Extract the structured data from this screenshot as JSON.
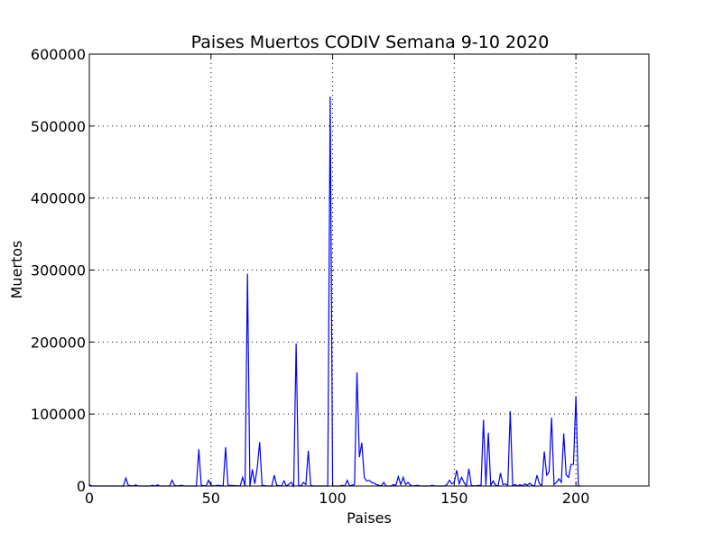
{
  "chart_data": {
    "type": "line",
    "title": "Paises Muertos CODIV Semana 9-10 2020",
    "xlabel": "Paises",
    "ylabel": "Muertos",
    "xlim": [
      0,
      230
    ],
    "ylim": [
      0,
      600000
    ],
    "xticks": [
      0,
      50,
      100,
      150,
      200
    ],
    "yticks": [
      0,
      100000,
      200000,
      300000,
      400000,
      500000,
      600000
    ],
    "grid": true,
    "series_color": "#0000ff",
    "series": [
      {
        "points": [
          [
            0,
            2000
          ],
          [
            1,
            0
          ],
          [
            14,
            0
          ],
          [
            15,
            11000
          ],
          [
            16,
            1000
          ],
          [
            18,
            0
          ],
          [
            19,
            1500
          ],
          [
            20,
            0
          ],
          [
            25,
            0
          ],
          [
            26,
            1000
          ],
          [
            27,
            0
          ],
          [
            28,
            1500
          ],
          [
            29,
            0
          ],
          [
            33,
            0
          ],
          [
            34,
            8000
          ],
          [
            35,
            1000
          ],
          [
            36,
            0
          ],
          [
            38,
            1000
          ],
          [
            39,
            0
          ],
          [
            44,
            0
          ],
          [
            45,
            51000
          ],
          [
            46,
            1000
          ],
          [
            48,
            0
          ],
          [
            49,
            8000
          ],
          [
            50,
            1000
          ],
          [
            51,
            0
          ],
          [
            53,
            1000
          ],
          [
            55,
            0
          ],
          [
            56,
            54000
          ],
          [
            57,
            1000
          ],
          [
            62,
            0
          ],
          [
            63,
            12000
          ],
          [
            64,
            0
          ],
          [
            65,
            295000
          ],
          [
            66,
            0
          ],
          [
            67,
            23000
          ],
          [
            68,
            3000
          ],
          [
            69,
            25000
          ],
          [
            70,
            61000
          ],
          [
            71,
            1000
          ],
          [
            73,
            0
          ],
          [
            75,
            0
          ],
          [
            76,
            15000
          ],
          [
            77,
            1000
          ],
          [
            79,
            0
          ],
          [
            80,
            7000
          ],
          [
            81,
            0
          ],
          [
            83,
            5000
          ],
          [
            84,
            0
          ],
          [
            85,
            198000
          ],
          [
            86,
            1000
          ],
          [
            87,
            0
          ],
          [
            88,
            5000
          ],
          [
            89,
            2000
          ],
          [
            90,
            49000
          ],
          [
            91,
            1000
          ],
          [
            92,
            0
          ],
          [
            97,
            0
          ],
          [
            98,
            0
          ],
          [
            99,
            541000
          ],
          [
            100,
            0
          ],
          [
            103,
            0
          ],
          [
            104,
            1000
          ],
          [
            105,
            0
          ],
          [
            106,
            8000
          ],
          [
            107,
            0
          ],
          [
            109,
            2000
          ],
          [
            110,
            158000
          ],
          [
            111,
            40000
          ],
          [
            112,
            60000
          ],
          [
            113,
            12000
          ],
          [
            114,
            7000
          ],
          [
            115,
            8000
          ],
          [
            116,
            5000
          ],
          [
            117,
            4000
          ],
          [
            118,
            2000
          ],
          [
            119,
            1000
          ],
          [
            120,
            0
          ],
          [
            121,
            5000
          ],
          [
            122,
            0
          ],
          [
            124,
            0
          ],
          [
            125,
            2000
          ],
          [
            126,
            1000
          ],
          [
            127,
            13000
          ],
          [
            128,
            2000
          ],
          [
            129,
            12000
          ],
          [
            130,
            2000
          ],
          [
            131,
            5000
          ],
          [
            132,
            1000
          ],
          [
            133,
            0
          ],
          [
            135,
            1000
          ],
          [
            136,
            0
          ],
          [
            140,
            0
          ],
          [
            141,
            1000
          ],
          [
            142,
            0
          ],
          [
            146,
            0
          ],
          [
            147,
            2000
          ],
          [
            148,
            8000
          ],
          [
            149,
            3000
          ],
          [
            150,
            5000
          ],
          [
            151,
            22000
          ],
          [
            152,
            3000
          ],
          [
            153,
            12000
          ],
          [
            154,
            5000
          ],
          [
            155,
            0
          ],
          [
            156,
            24000
          ],
          [
            157,
            1000
          ],
          [
            158,
            0
          ],
          [
            161,
            1000
          ],
          [
            162,
            92000
          ],
          [
            163,
            1000
          ],
          [
            164,
            74000
          ],
          [
            165,
            1000
          ],
          [
            166,
            7000
          ],
          [
            167,
            1000
          ],
          [
            168,
            0
          ],
          [
            169,
            18000
          ],
          [
            170,
            2000
          ],
          [
            171,
            3000
          ],
          [
            172,
            1000
          ],
          [
            173,
            104000
          ],
          [
            174,
            1000
          ],
          [
            175,
            2000
          ],
          [
            176,
            0
          ],
          [
            177,
            2000
          ],
          [
            178,
            0
          ],
          [
            179,
            3000
          ],
          [
            180,
            1000
          ],
          [
            181,
            4000
          ],
          [
            182,
            1000
          ],
          [
            183,
            0
          ],
          [
            184,
            15000
          ],
          [
            185,
            3000
          ],
          [
            186,
            1000
          ],
          [
            187,
            48000
          ],
          [
            188,
            15000
          ],
          [
            189,
            20000
          ],
          [
            190,
            95000
          ],
          [
            191,
            2000
          ],
          [
            192,
            5000
          ],
          [
            193,
            10000
          ],
          [
            194,
            5000
          ],
          [
            195,
            73000
          ],
          [
            196,
            15000
          ],
          [
            197,
            12000
          ],
          [
            198,
            30000
          ],
          [
            199,
            30000
          ],
          [
            200,
            125000
          ],
          [
            201,
            0
          ],
          [
            202,
            0
          ]
        ]
      }
    ]
  }
}
